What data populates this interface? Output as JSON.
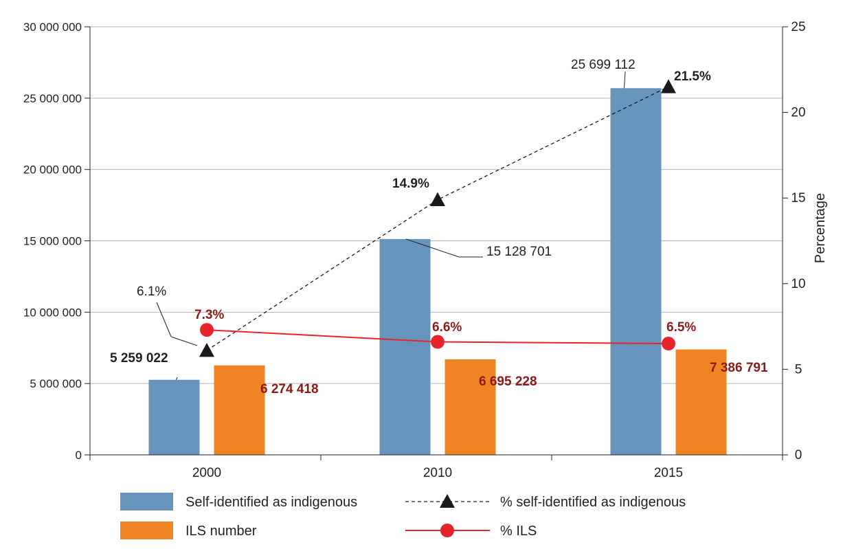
{
  "chart_data": {
    "type": "bar",
    "categories": [
      "2000",
      "2010",
      "2015"
    ],
    "y_left": {
      "ylim": [
        0,
        30000000
      ],
      "ticks": [
        0,
        5000000,
        10000000,
        15000000,
        20000000,
        25000000,
        30000000
      ],
      "tick_labels": [
        "0",
        "5 000 000",
        "10 000 000",
        "15 000 000",
        "20 000 000",
        "25 000 000",
        "30 000 000"
      ]
    },
    "y_right": {
      "ylabel": "Percentage",
      "ylim": [
        0,
        25
      ],
      "ticks": [
        0,
        5,
        10,
        15,
        20,
        25
      ],
      "tick_labels": [
        "0",
        "5",
        "10",
        "15",
        "20",
        "25"
      ]
    },
    "series": [
      {
        "name": "Self-identified as indigenous",
        "kind": "bar",
        "axis": "left",
        "color": "#6694BC",
        "values": [
          5259022,
          15128701,
          25699112
        ],
        "labels": [
          "5 259 022",
          "15 128 701",
          "25 699 112"
        ]
      },
      {
        "name": "ILS number",
        "kind": "bar",
        "axis": "left",
        "color": "#F08424",
        "values": [
          6274418,
          6695228,
          7386791
        ],
        "labels": [
          "6 274 418",
          "6 695 228",
          "7 386 791"
        ]
      },
      {
        "name": "% self-identified as indigenous",
        "kind": "line",
        "style": "dashed",
        "marker": "triangle",
        "axis": "right",
        "color": "#1a1a1a",
        "values": [
          6.1,
          14.9,
          21.5
        ],
        "labels": [
          "6.1%",
          "14.9%",
          "21.5%"
        ]
      },
      {
        "name": "% ILS",
        "kind": "line",
        "style": "solid",
        "marker": "circle",
        "axis": "right",
        "color": "#E8232A",
        "values": [
          7.3,
          6.6,
          6.5
        ],
        "labels": [
          "7.3%",
          "6.6%",
          "6.5%"
        ]
      }
    ],
    "label_colors": {
      "ils": "#8B1A1A",
      "dark": "#231F20"
    },
    "grid": true,
    "legend_position": "bottom"
  }
}
